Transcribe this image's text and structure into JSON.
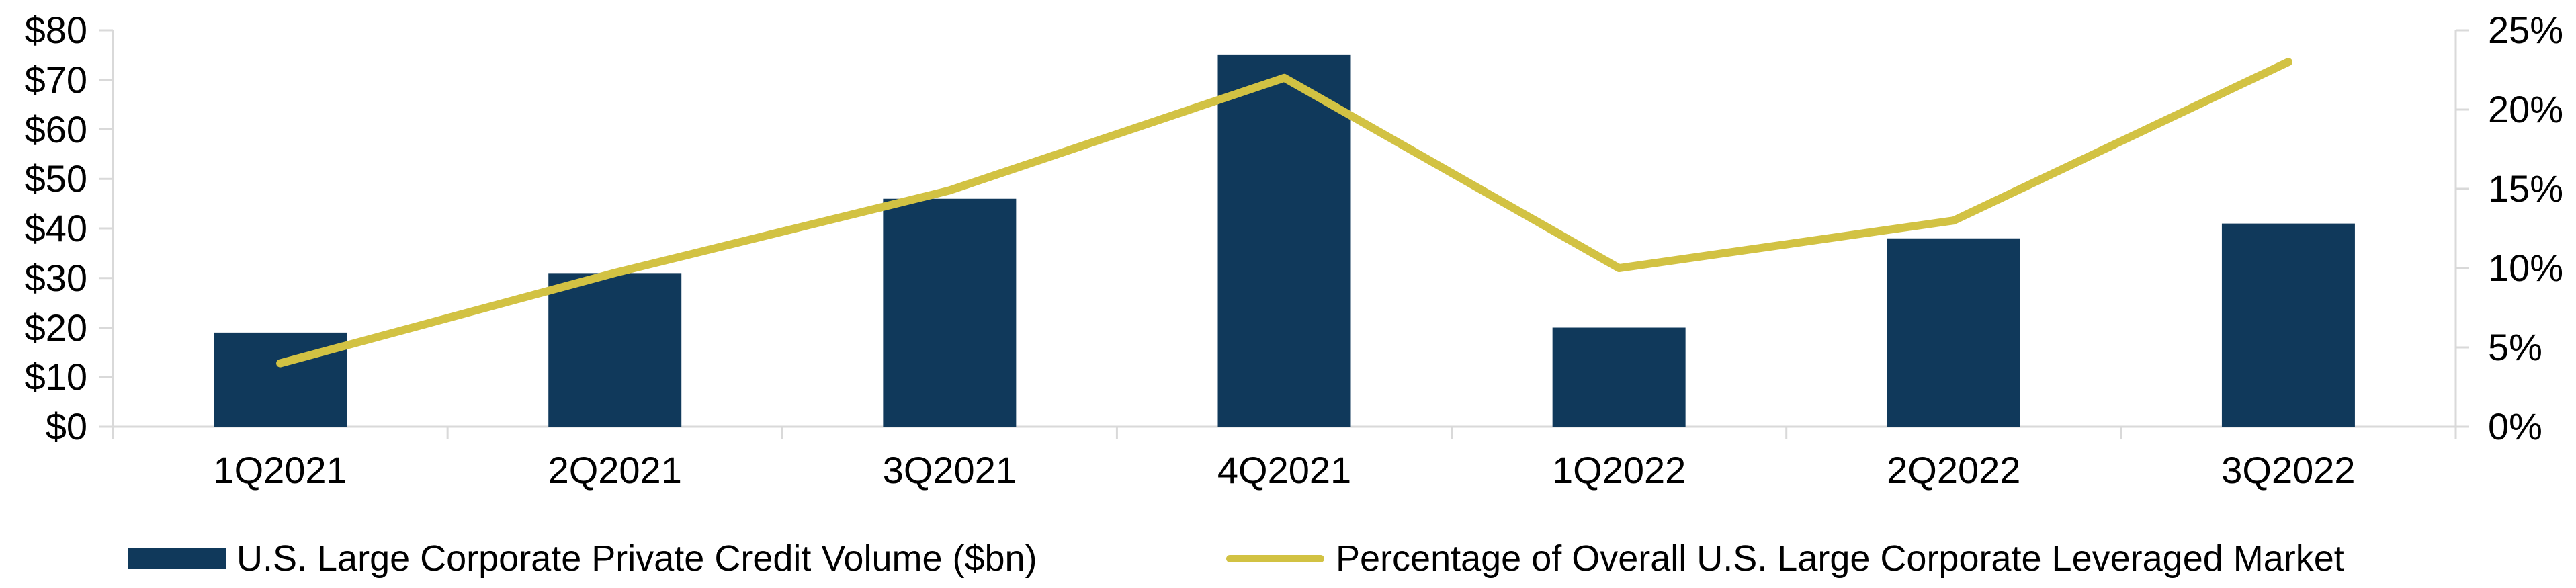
{
  "chart_data": {
    "type": "combo-bar-line",
    "categories": [
      "1Q2021",
      "2Q2021",
      "3Q2021",
      "4Q2021",
      "1Q2022",
      "2Q2022",
      "3Q2022"
    ],
    "series": [
      {
        "name": "U.S. Large Corporate Private Credit Volume ($bn)",
        "type": "bar",
        "axis": "left",
        "color": "#10395B",
        "values": [
          19,
          31,
          46,
          75,
          20,
          38,
          41
        ]
      },
      {
        "name": "Percentage of Overall U.S. Large Corporate Leveraged Market",
        "type": "line",
        "axis": "right",
        "color": "#D2C243",
        "values": [
          4,
          9.7,
          14.9,
          22,
          10,
          13,
          23
        ]
      }
    ],
    "left_axis": {
      "min": 0,
      "max": 80,
      "tick_values": [
        0,
        10,
        20,
        30,
        40,
        50,
        60,
        70,
        80
      ],
      "tick_labels": [
        "$0",
        "$10",
        "$20",
        "$30",
        "$40",
        "$50",
        "$60",
        "$70",
        "$80"
      ]
    },
    "right_axis": {
      "min": 0,
      "max": 25,
      "tick_values": [
        0,
        5,
        10,
        15,
        20,
        25
      ],
      "tick_labels": [
        "0%",
        "5%",
        "10%",
        "15%",
        "20%",
        "25%"
      ]
    },
    "title": "",
    "xlabel": "",
    "ylabel_left": "",
    "ylabel_right": "",
    "grid": "off",
    "legend_position": "bottom",
    "axis_color": "#D9D9D9",
    "text_color": "#000000",
    "background_color": "#FFFFFF"
  }
}
